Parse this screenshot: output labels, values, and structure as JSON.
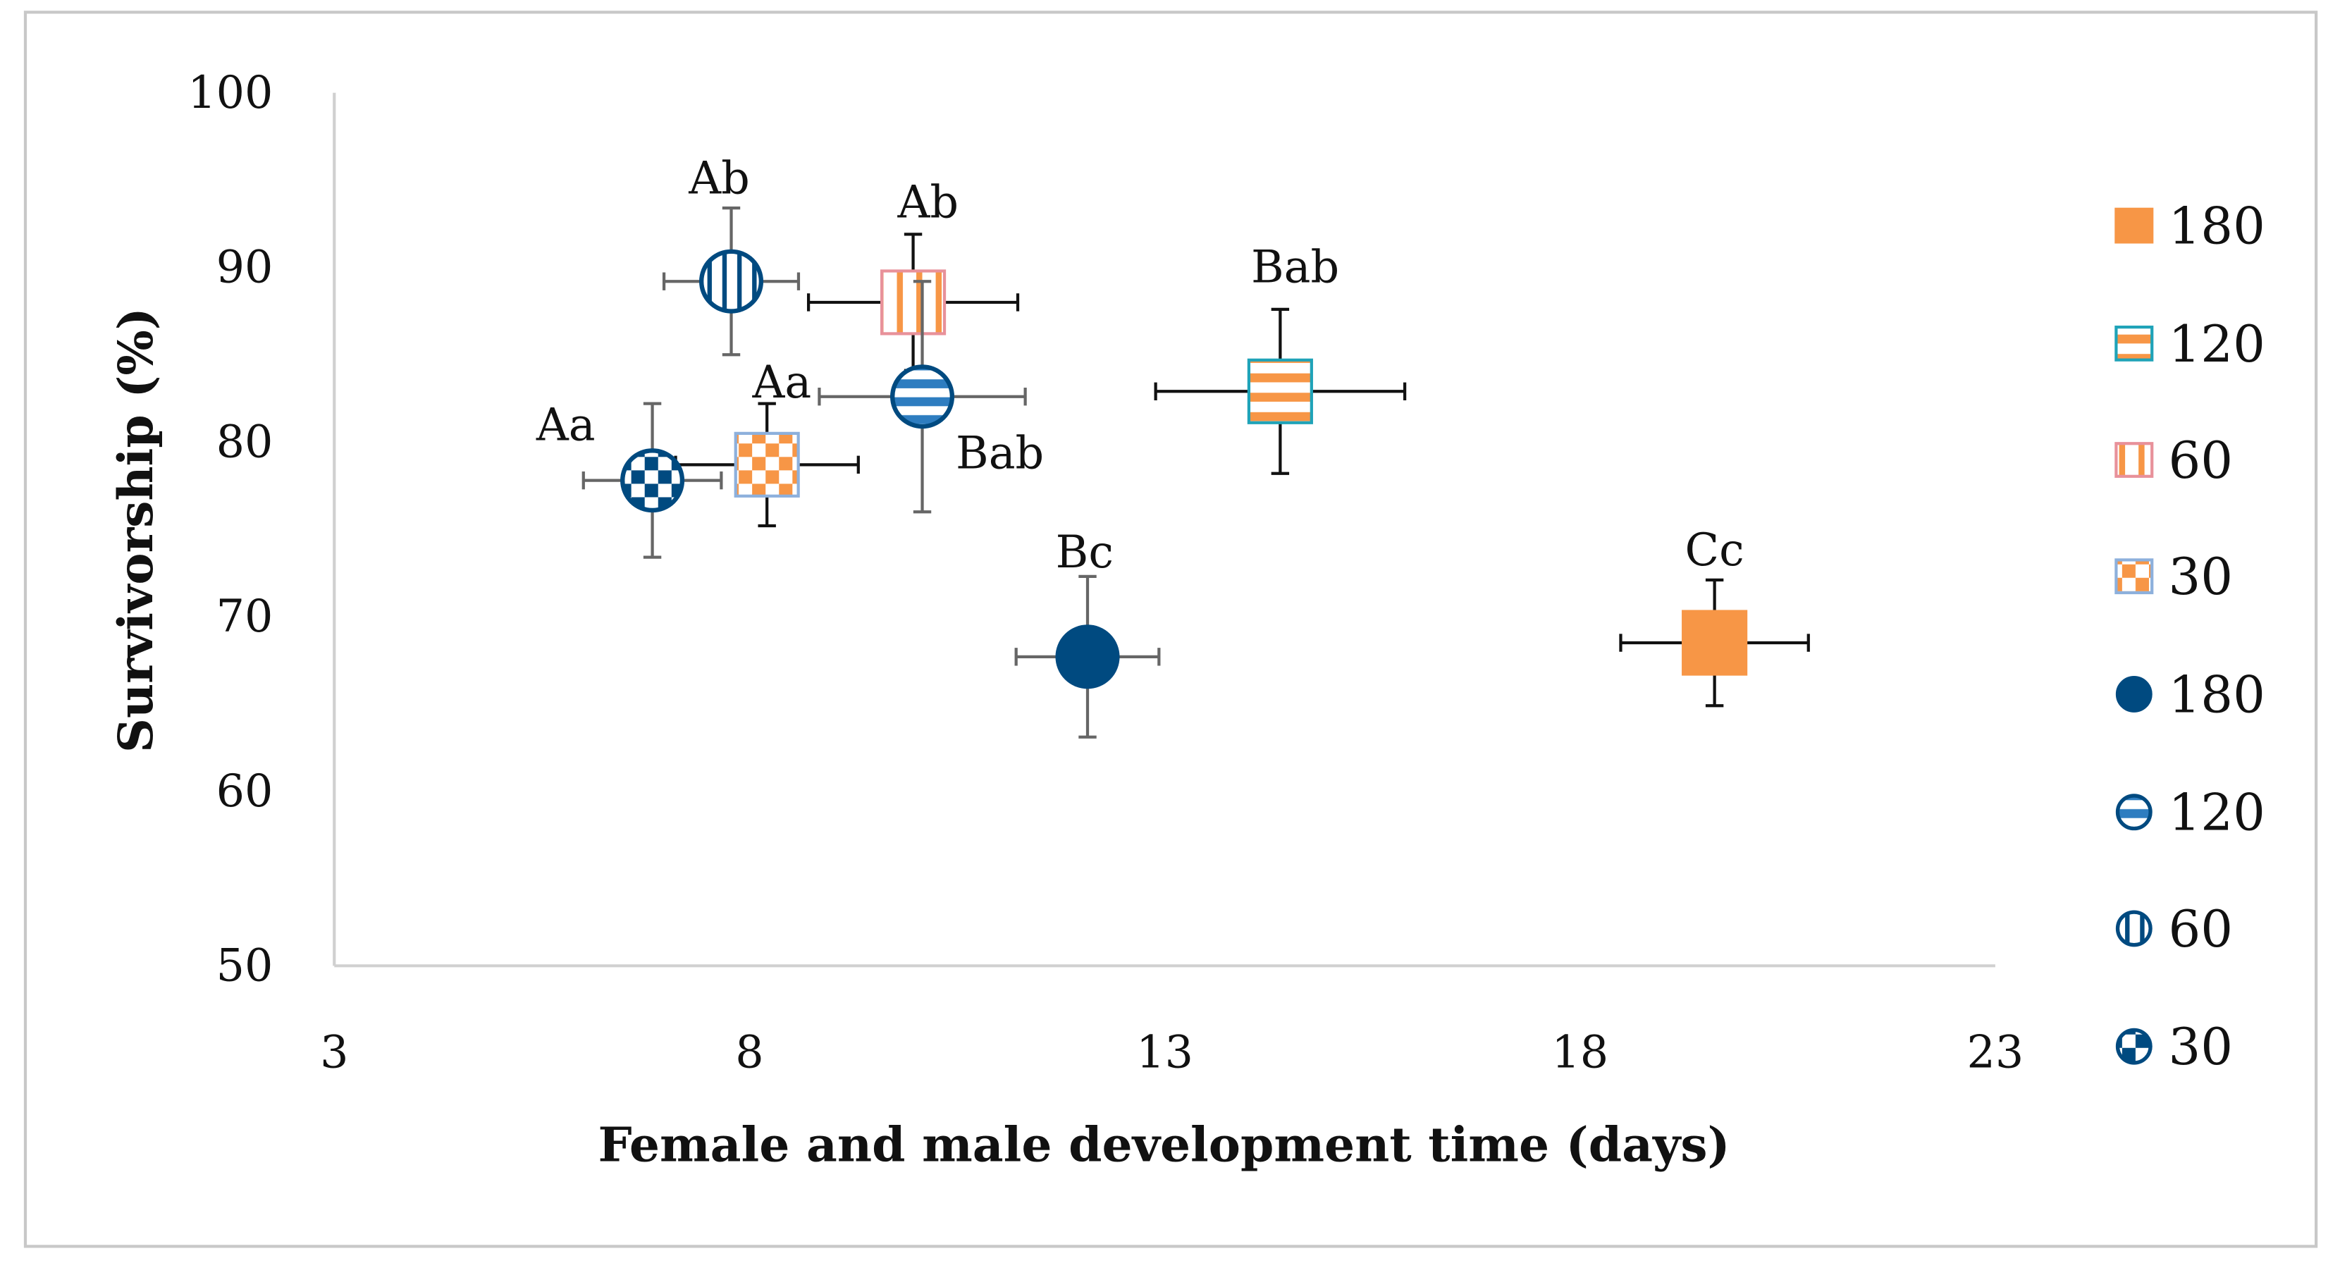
{
  "chart_data": {
    "type": "scatter",
    "title": "",
    "xlabel": "Female and male development time (days)",
    "ylabel": "Survivorship (%)",
    "xlim": [
      3,
      23
    ],
    "ylim": [
      50,
      100
    ],
    "xticks": [
      3,
      8,
      13,
      18,
      23
    ],
    "yticks": [
      50,
      60,
      70,
      80,
      90,
      100
    ],
    "grid": false,
    "legend_position": "right",
    "colors": {
      "orange": "#F79646",
      "navy": "#004A80",
      "blue": "#2E7DC0",
      "teal": "#1FA3B8",
      "pink": "#E8919A",
      "lightblue": "#8DB0DC"
    },
    "series": [
      {
        "name": "180",
        "marker": "square",
        "pattern": "solid-orange",
        "x": 19.62,
        "y": 68.5,
        "xerr": 1.13,
        "yerr": 3.6,
        "label": "Cc"
      },
      {
        "name": "120",
        "marker": "square",
        "pattern": "hstripe-orange",
        "x": 14.39,
        "y": 82.9,
        "xerr": 1.5,
        "yerr": 4.7,
        "label": "Bab"
      },
      {
        "name": "60",
        "marker": "square",
        "pattern": "vstripe-orange",
        "x": 9.97,
        "y": 88.0,
        "xerr": 1.26,
        "yerr": 3.9,
        "label": "Ab"
      },
      {
        "name": "30",
        "marker": "square",
        "pattern": "checker-orange",
        "x": 8.21,
        "y": 78.7,
        "xerr": 1.1,
        "yerr": 3.5,
        "label": "Aa"
      },
      {
        "name": "180",
        "marker": "circle",
        "pattern": "solid-navy",
        "x": 12.07,
        "y": 67.7,
        "xerr": 0.86,
        "yerr": 4.6,
        "label": "Bc"
      },
      {
        "name": "120",
        "marker": "circle",
        "pattern": "hstripe-blue",
        "x": 10.08,
        "y": 82.6,
        "xerr": 1.24,
        "yerr": 6.6,
        "label": "Bab"
      },
      {
        "name": "60",
        "marker": "circle",
        "pattern": "vstripe-navy",
        "x": 7.78,
        "y": 89.2,
        "xerr": 0.81,
        "yerr": 4.2,
        "label": "Ab"
      },
      {
        "name": "30",
        "marker": "circle",
        "pattern": "checker-navy",
        "x": 6.83,
        "y": 77.8,
        "xerr": 0.83,
        "yerr": 4.4,
        "label": "Aa"
      }
    ]
  }
}
